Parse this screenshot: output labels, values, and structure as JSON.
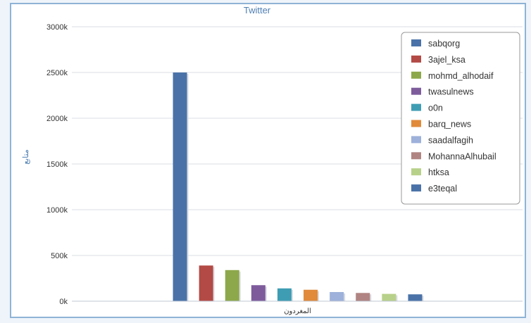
{
  "chart_data": {
    "type": "bar",
    "title": "Twitter",
    "xlabel": "",
    "ylabel": "متابع",
    "categories": [
      "المغردون"
    ],
    "ylim": [
      0,
      3000
    ],
    "yticks": [
      "0k",
      "500k",
      "1000k",
      "1500k",
      "2000k",
      "2500k",
      "3000k"
    ],
    "grid": true,
    "legend_position": "top-right",
    "series": [
      {
        "name": "sabqorg",
        "color": "#4a72a8",
        "values": [
          2500
        ]
      },
      {
        "name": "3ajel_ksa",
        "color": "#b34a45",
        "values": [
          390
        ]
      },
      {
        "name": "mohmd_alhodaif",
        "color": "#8da84a",
        "values": [
          340
        ]
      },
      {
        "name": "twasulnews",
        "color": "#7e5c9c",
        "values": [
          175
        ]
      },
      {
        "name": "o0n",
        "color": "#3f9db3",
        "values": [
          140
        ]
      },
      {
        "name": "barq_news",
        "color": "#e08a3a",
        "values": [
          125
        ]
      },
      {
        "name": "saadalfagih",
        "color": "#9db1da",
        "values": [
          100
        ]
      },
      {
        "name": "MohannaAlhubail",
        "color": "#b08482",
        "values": [
          90
        ]
      },
      {
        "name": "htksa",
        "color": "#b8d18a",
        "values": [
          80
        ]
      },
      {
        "name": "e3teqal",
        "color": "#4a72a8",
        "values": [
          75
        ]
      }
    ]
  }
}
